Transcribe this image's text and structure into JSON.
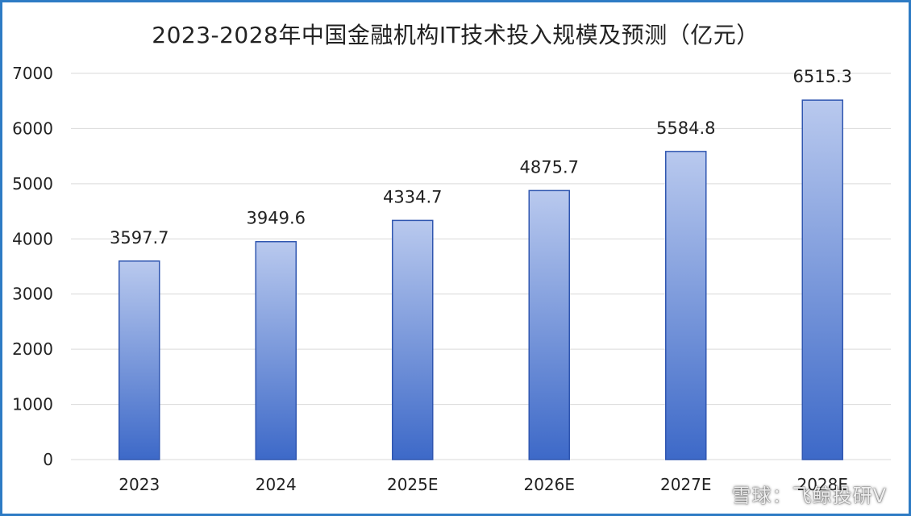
{
  "chart_data": {
    "type": "bar",
    "title": "2023-2028年中国金融机构IT技术投入规模及预测（亿元）",
    "categories": [
      "2023",
      "2024",
      "2025E",
      "2026E",
      "2027E",
      "2028E"
    ],
    "values": [
      3597.7,
      3949.6,
      4334.7,
      4875.7,
      5584.8,
      6515.3
    ],
    "value_labels": [
      "3597.7",
      "3949.6",
      "4334.7",
      "4875.7",
      "5584.8",
      "6515.3"
    ],
    "yticks": [
      "0",
      "1000",
      "2000",
      "3000",
      "4000",
      "5000",
      "6000",
      "7000"
    ],
    "ylim": [
      0,
      7000
    ],
    "grid": true,
    "legend": "none",
    "bar_color_top": "#b9c9ee",
    "bar_color_bottom": "#3d69c8",
    "bar_edge_color": "#2f56b0",
    "grid_color": "#d9d9d9"
  },
  "watermark": "雪球：飞鲸投研V"
}
